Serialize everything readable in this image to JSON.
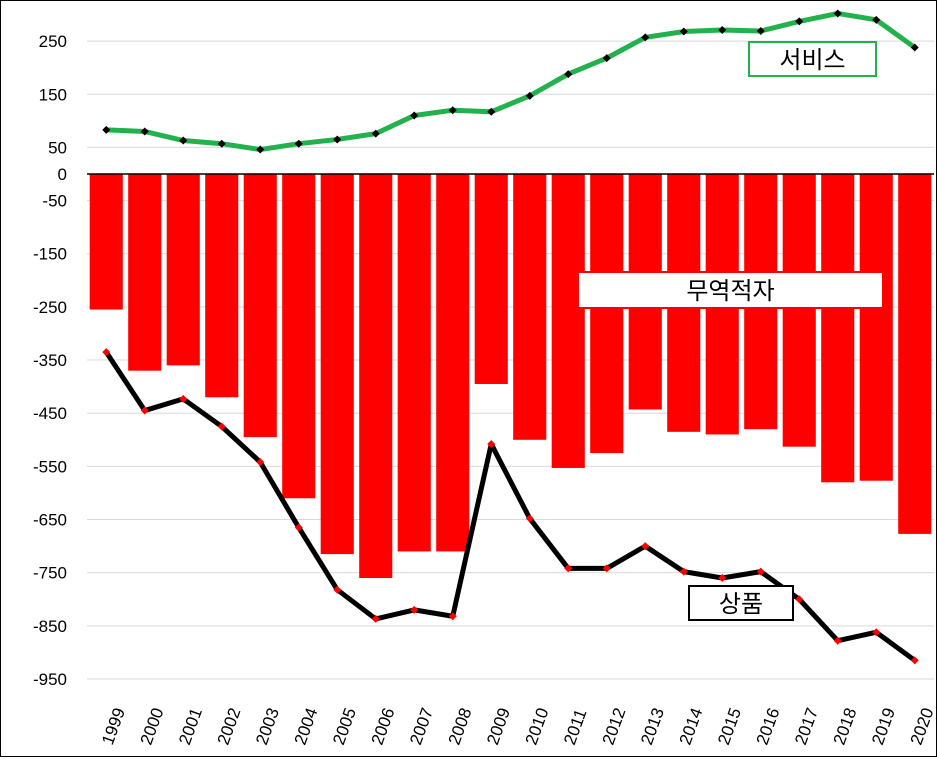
{
  "chart_data": {
    "type": "bar+line",
    "categories": [
      "1999",
      "2000",
      "2001",
      "2002",
      "2003",
      "2004",
      "2005",
      "2006",
      "2007",
      "2008",
      "2009",
      "2010",
      "2011",
      "2012",
      "2013",
      "2014",
      "2015",
      "2016",
      "2017",
      "2018",
      "2019",
      "2020"
    ],
    "ylim": [
      -1000,
      300
    ],
    "yticks": [
      250,
      150,
      50,
      0,
      -50,
      -150,
      -250,
      -350,
      -450,
      -550,
      -650,
      -750,
      -850,
      -950
    ],
    "grid": true,
    "series": [
      {
        "name": "무역적자",
        "kind": "bar",
        "color": "#ff0000",
        "values": [
          -255,
          -370,
          -360,
          -420,
          -495,
          -610,
          -715,
          -760,
          -710,
          -710,
          -395,
          -500,
          -553,
          -525,
          -443,
          -485,
          -490,
          -480,
          -513,
          -580,
          -577,
          -677
        ]
      },
      {
        "name": "서비스",
        "kind": "line",
        "color": "#22b14c",
        "marker_color": "#000000",
        "values": [
          83,
          80,
          63,
          57,
          46,
          57,
          65,
          76,
          110,
          120,
          117,
          147,
          188,
          218,
          257,
          268,
          271,
          269,
          287,
          302,
          290,
          238
        ]
      },
      {
        "name": "상품",
        "kind": "line",
        "color": "#000000",
        "marker_color": "#ff0000",
        "values": [
          -335,
          -445,
          -423,
          -475,
          -542,
          -665,
          -782,
          -837,
          -820,
          -832,
          -508,
          -648,
          -742,
          -742,
          -700,
          -748,
          -760,
          -748,
          -800,
          -878,
          -862,
          -915
        ]
      }
    ]
  }
}
